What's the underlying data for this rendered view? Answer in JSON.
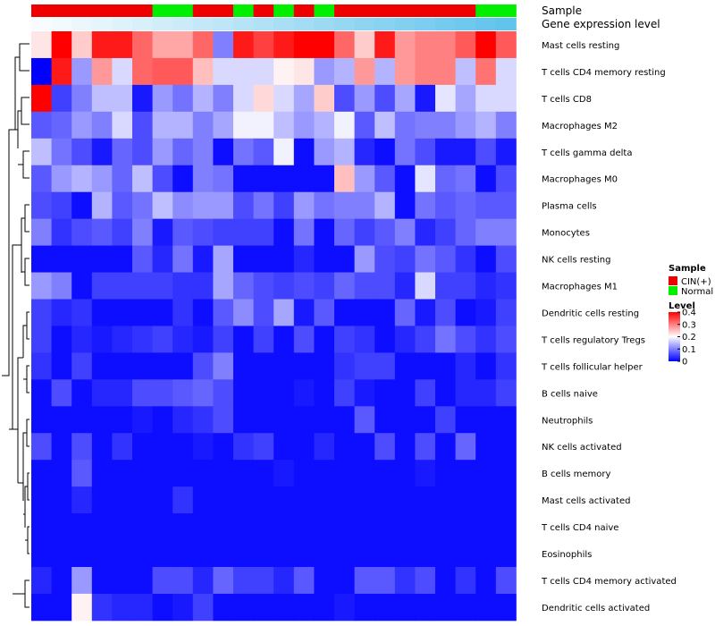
{
  "chart_data": {
    "type": "heatmap",
    "title": "",
    "annotations": {
      "sample_label": "Sample",
      "expression_label": "Gene expression level",
      "samples": [
        "CIN(+)",
        "CIN(+)",
        "CIN(+)",
        "CIN(+)",
        "CIN(+)",
        "CIN(+)",
        "Normal",
        "Normal",
        "CIN(+)",
        "CIN(+)",
        "Normal",
        "CIN(+)",
        "Normal",
        "CIN(+)",
        "Normal",
        "CIN(+)",
        "CIN(+)",
        "CIN(+)",
        "CIN(+)",
        "CIN(+)",
        "CIN(+)",
        "CIN(+)",
        "Normal",
        "Normal"
      ],
      "expression_levels": [
        0.04,
        0.08,
        0.12,
        0.16,
        0.2,
        0.24,
        0.28,
        0.32,
        0.36,
        0.4,
        0.44,
        0.48,
        0.52,
        0.56,
        0.6,
        0.64,
        0.68,
        0.72,
        0.76,
        0.8,
        0.84,
        0.88,
        0.92,
        0.96
      ],
      "sample_colors": {
        "CIN(+)": "#EE0000",
        "Normal": "#00EE00"
      },
      "expression_colors": {
        "low": "#FFFFFF",
        "high": "#5BC0EB"
      }
    },
    "rows": [
      "Mast cells resting",
      "T cells CD4 memory resting",
      "T cells CD8",
      "Macrophages M2",
      "T cells gamma delta",
      "Macrophages M0",
      "Plasma cells",
      "Monocytes",
      "NK cells resting",
      "Macrophages M1",
      "Dendritic cells resting",
      "T cells regulatory  Tregs",
      "T cells follicular helper",
      "B cells naive",
      "Neutrophils",
      "NK cells activated",
      "B cells memory",
      "Mast cells activated",
      "T cells CD4 naive",
      "Eosinophils",
      "T cells CD4 memory activated",
      "Dendritic cells activated"
    ],
    "values": [
      [
        0.22,
        0.4,
        0.24,
        0.38,
        0.38,
        0.32,
        0.27,
        0.27,
        0.32,
        0.1,
        0.38,
        0.35,
        0.38,
        0.4,
        0.4,
        0.32,
        0.24,
        0.38,
        0.28,
        0.3,
        0.3,
        0.33,
        0.4,
        0.33
      ],
      [
        0.0,
        0.38,
        0.12,
        0.28,
        0.17,
        0.32,
        0.33,
        0.33,
        0.25,
        0.17,
        0.17,
        0.17,
        0.21,
        0.22,
        0.12,
        0.14,
        0.28,
        0.14,
        0.28,
        0.3,
        0.3,
        0.15,
        0.31,
        0.17
      ],
      [
        0.4,
        0.05,
        0.1,
        0.15,
        0.15,
        0.02,
        0.12,
        0.09,
        0.14,
        0.1,
        0.17,
        0.23,
        0.17,
        0.13,
        0.24,
        0.06,
        0.12,
        0.06,
        0.13,
        0.02,
        0.18,
        0.13,
        0.17,
        0.17
      ],
      [
        0.07,
        0.08,
        0.12,
        0.1,
        0.17,
        0.06,
        0.14,
        0.14,
        0.1,
        0.13,
        0.19,
        0.19,
        0.15,
        0.12,
        0.14,
        0.19,
        0.07,
        0.15,
        0.09,
        0.1,
        0.1,
        0.12,
        0.14,
        0.1
      ],
      [
        0.15,
        0.09,
        0.06,
        0.02,
        0.08,
        0.06,
        0.12,
        0.08,
        0.1,
        0.01,
        0.09,
        0.07,
        0.19,
        0.01,
        0.12,
        0.14,
        0.03,
        0.01,
        0.09,
        0.06,
        0.02,
        0.02,
        0.06,
        0.02
      ],
      [
        0.07,
        0.12,
        0.14,
        0.12,
        0.08,
        0.15,
        0.06,
        0.01,
        0.1,
        0.09,
        0.01,
        0.01,
        0.01,
        0.01,
        0.01,
        0.25,
        0.12,
        0.07,
        0.01,
        0.18,
        0.08,
        0.09,
        0.01,
        0.06
      ],
      [
        0.06,
        0.05,
        0.01,
        0.14,
        0.07,
        0.09,
        0.15,
        0.11,
        0.12,
        0.12,
        0.06,
        0.09,
        0.05,
        0.12,
        0.09,
        0.1,
        0.1,
        0.14,
        0.01,
        0.09,
        0.07,
        0.08,
        0.07,
        0.07
      ],
      [
        0.1,
        0.04,
        0.06,
        0.07,
        0.05,
        0.1,
        0.02,
        0.07,
        0.06,
        0.05,
        0.05,
        0.05,
        0.01,
        0.09,
        0.01,
        0.08,
        0.05,
        0.07,
        0.1,
        0.03,
        0.05,
        0.08,
        0.1,
        0.1
      ],
      [
        0.01,
        0.01,
        0.01,
        0.01,
        0.01,
        0.07,
        0.03,
        0.09,
        0.02,
        0.13,
        0.01,
        0.01,
        0.01,
        0.03,
        0.01,
        0.01,
        0.12,
        0.06,
        0.05,
        0.09,
        0.07,
        0.04,
        0.01,
        0.06
      ],
      [
        0.12,
        0.1,
        0.01,
        0.05,
        0.05,
        0.05,
        0.05,
        0.04,
        0.04,
        0.13,
        0.08,
        0.06,
        0.05,
        0.06,
        0.05,
        0.08,
        0.06,
        0.06,
        0.03,
        0.17,
        0.05,
        0.05,
        0.03,
        0.04
      ],
      [
        0.05,
        0.03,
        0.04,
        0.01,
        0.01,
        0.01,
        0.01,
        0.04,
        0.01,
        0.07,
        0.11,
        0.06,
        0.13,
        0.02,
        0.07,
        0.01,
        0.01,
        0.01,
        0.08,
        0.02,
        0.06,
        0.01,
        0.02,
        0.05
      ],
      [
        0.05,
        0.01,
        0.03,
        0.02,
        0.03,
        0.04,
        0.05,
        0.03,
        0.02,
        0.05,
        0.01,
        0.05,
        0.01,
        0.06,
        0.01,
        0.05,
        0.04,
        0.01,
        0.03,
        0.05,
        0.09,
        0.06,
        0.04,
        0.06
      ],
      [
        0.04,
        0.01,
        0.05,
        0.01,
        0.01,
        0.01,
        0.01,
        0.01,
        0.06,
        0.1,
        0.01,
        0.01,
        0.01,
        0.01,
        0.01,
        0.04,
        0.05,
        0.05,
        0.01,
        0.01,
        0.01,
        0.03,
        0.01,
        0.04
      ],
      [
        0.01,
        0.06,
        0.01,
        0.03,
        0.03,
        0.06,
        0.06,
        0.07,
        0.08,
        0.06,
        0.01,
        0.01,
        0.01,
        0.02,
        0.01,
        0.05,
        0.02,
        0.01,
        0.01,
        0.05,
        0.01,
        0.03,
        0.03,
        0.05
      ],
      [
        0.01,
        0.01,
        0.01,
        0.01,
        0.01,
        0.02,
        0.01,
        0.03,
        0.04,
        0.06,
        0.01,
        0.01,
        0.01,
        0.01,
        0.01,
        0.01,
        0.07,
        0.01,
        0.01,
        0.01,
        0.05,
        0.01,
        0.01,
        0.01
      ],
      [
        0.06,
        0.01,
        0.06,
        0.01,
        0.04,
        0.01,
        0.01,
        0.01,
        0.02,
        0.01,
        0.04,
        0.05,
        0.01,
        0.01,
        0.03,
        0.01,
        0.01,
        0.06,
        0.01,
        0.06,
        0.01,
        0.08,
        0.01,
        0.01
      ],
      [
        0.01,
        0.01,
        0.07,
        0.01,
        0.01,
        0.01,
        0.01,
        0.01,
        0.01,
        0.01,
        0.01,
        0.01,
        0.02,
        0.01,
        0.01,
        0.01,
        0.01,
        0.01,
        0.01,
        0.02,
        0.01,
        0.01,
        0.01,
        0.01
      ],
      [
        0.01,
        0.01,
        0.03,
        0.01,
        0.01,
        0.01,
        0.01,
        0.04,
        0.01,
        0.01,
        0.01,
        0.01,
        0.01,
        0.01,
        0.01,
        0.01,
        0.01,
        0.01,
        0.01,
        0.01,
        0.01,
        0.01,
        0.01,
        0.01
      ],
      [
        0.01,
        0.01,
        0.01,
        0.01,
        0.01,
        0.01,
        0.01,
        0.01,
        0.01,
        0.01,
        0.01,
        0.01,
        0.01,
        0.01,
        0.01,
        0.01,
        0.01,
        0.01,
        0.01,
        0.01,
        0.01,
        0.01,
        0.01,
        0.01
      ],
      [
        0.01,
        0.01,
        0.01,
        0.01,
        0.01,
        0.01,
        0.01,
        0.01,
        0.01,
        0.01,
        0.01,
        0.01,
        0.01,
        0.01,
        0.01,
        0.01,
        0.01,
        0.01,
        0.01,
        0.01,
        0.01,
        0.01,
        0.01,
        0.01
      ],
      [
        0.03,
        0.01,
        0.12,
        0.01,
        0.01,
        0.01,
        0.06,
        0.06,
        0.03,
        0.08,
        0.05,
        0.05,
        0.03,
        0.07,
        0.01,
        0.01,
        0.07,
        0.07,
        0.04,
        0.06,
        0.01,
        0.04,
        0.01,
        0.06
      ],
      [
        0.01,
        0.01,
        0.21,
        0.04,
        0.03,
        0.03,
        0.01,
        0.02,
        0.05,
        0.01,
        0.01,
        0.01,
        0.01,
        0.01,
        0.01,
        0.02,
        0.01,
        0.01,
        0.01,
        0.01,
        0.01,
        0.01,
        0.01,
        0.01
      ]
    ],
    "legend": {
      "sample_title": "Sample",
      "sample_entries": [
        "CIN(+)",
        "Normal"
      ],
      "level_title": "Level",
      "level_ticks": [
        "0.4",
        "0.3",
        "0.2",
        "0.1",
        "0"
      ],
      "level_tick_values": [
        0.4,
        0.3,
        0.2,
        0.1,
        0
      ],
      "value_range": [
        0,
        0.4
      ]
    },
    "colors": {
      "low": "#0000FF",
      "mid": "#FFFFFF",
      "high": "#FF0000"
    }
  }
}
